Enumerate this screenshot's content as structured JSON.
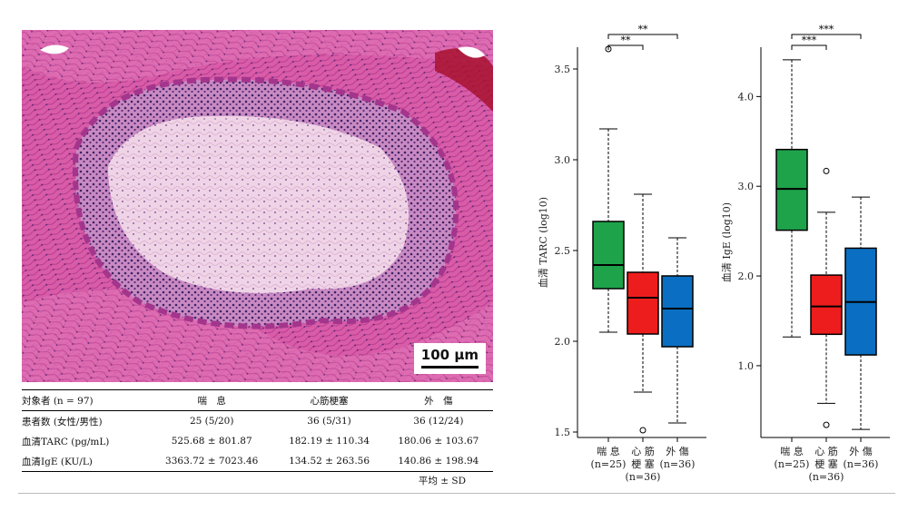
{
  "image": {
    "scale_bar_label": "100 µm"
  },
  "table": {
    "header": [
      "対象者 (n = 97)",
      "喘　息",
      "心筋梗塞",
      "外　傷"
    ],
    "rows": [
      {
        "label": "患者数 (女性/男性)",
        "values": [
          "25 (5/20)",
          "36 (5/31)",
          "36 (12/24)"
        ]
      },
      {
        "label": "血清TARC (pg/mL)",
        "values": [
          "525.68 ± 801.87",
          "182.19 ± 110.34",
          "180.06 ± 103.67"
        ]
      },
      {
        "label": "血清IgE (KU/L)",
        "values": [
          "3363.72 ± 7023.46",
          "134.52 ± 263.56",
          "140.86 ± 198.94"
        ]
      }
    ],
    "footnote": "平均 ± SD"
  },
  "chart_data": [
    {
      "type": "box",
      "ylabel": "血清 TARC (log10)",
      "ylim": [
        1.47,
        3.62
      ],
      "yticks": [
        "1.5",
        "2.0",
        "2.5",
        "3.0",
        "3.5"
      ],
      "groups": [
        {
          "label": [
            "喘 息",
            "(n=25)"
          ],
          "color": "#1ea34a",
          "min": 2.05,
          "q1": 2.29,
          "median": 2.42,
          "q3": 2.66,
          "max": 3.17,
          "outliers": [
            3.61
          ]
        },
        {
          "label": [
            "心 筋",
            "梗 塞",
            "(n=36)"
          ],
          "color": "#ee1d1d",
          "min": 1.72,
          "q1": 2.04,
          "median": 2.24,
          "q3": 2.38,
          "max": 2.81,
          "outliers": [
            1.51
          ]
        },
        {
          "label": [
            "外 傷",
            "(n=36)"
          ],
          "color": "#0a6fc2",
          "min": 1.55,
          "q1": 1.97,
          "median": 2.18,
          "q3": 2.36,
          "max": 2.57,
          "outliers": []
        }
      ],
      "significance": [
        {
          "from": 0,
          "to": 1,
          "label": "**"
        },
        {
          "from": 0,
          "to": 2,
          "label": "**"
        }
      ]
    },
    {
      "type": "box",
      "ylabel": "血清 IgE (log10)",
      "ylim": [
        0.2,
        4.55
      ],
      "yticks": [
        "1.0",
        "2.0",
        "3.0",
        "4.0"
      ],
      "groups": [
        {
          "label": [
            "喘 息",
            "(n=25)"
          ],
          "color": "#1ea34a",
          "min": 1.32,
          "q1": 2.51,
          "median": 2.97,
          "q3": 3.41,
          "max": 4.41,
          "outliers": []
        },
        {
          "label": [
            "心 筋",
            "梗 塞",
            "(n=36)"
          ],
          "color": "#ee1d1d",
          "min": 0.58,
          "q1": 1.35,
          "median": 1.66,
          "q3": 2.01,
          "max": 2.71,
          "outliers": [
            3.17,
            0.34
          ]
        },
        {
          "label": [
            "外 傷",
            "(n=36)"
          ],
          "color": "#0a6fc2",
          "min": 0.29,
          "q1": 1.12,
          "median": 1.71,
          "q3": 2.31,
          "max": 2.88,
          "outliers": []
        }
      ],
      "significance": [
        {
          "from": 0,
          "to": 1,
          "label": "***"
        },
        {
          "from": 0,
          "to": 2,
          "label": "***"
        }
      ]
    }
  ]
}
